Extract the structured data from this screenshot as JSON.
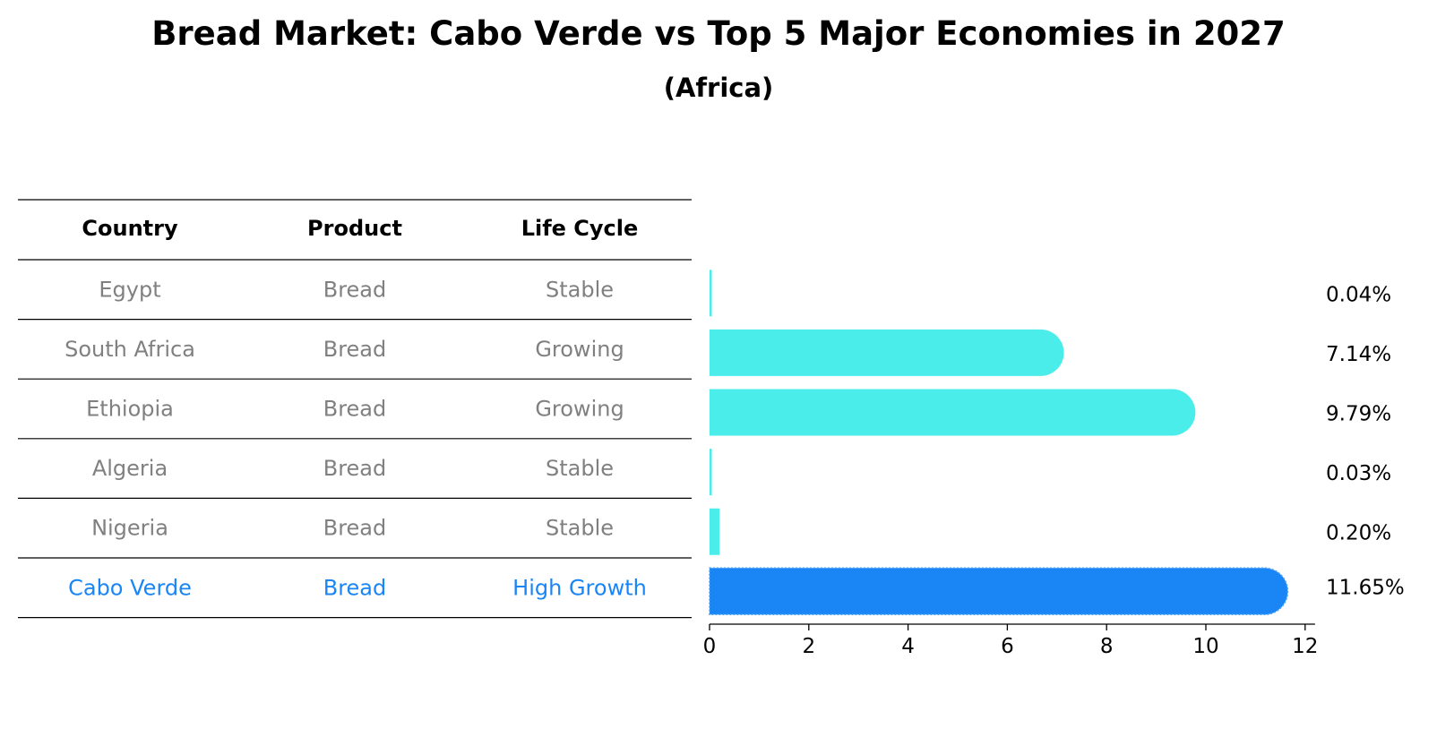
{
  "chart_data": {
    "type": "bar",
    "orientation": "horizontal",
    "title": "Bread Market: Cabo Verde vs Top 5 Major Economies in 2027",
    "subtitle": "(Africa)",
    "table": {
      "headers": [
        "Country",
        "Product",
        "Life Cycle"
      ],
      "rows": [
        {
          "country": "Egypt",
          "product": "Bread",
          "life_cycle": "Stable",
          "highlight": false
        },
        {
          "country": "South Africa",
          "product": "Bread",
          "life_cycle": "Growing",
          "highlight": false
        },
        {
          "country": "Ethiopia",
          "product": "Bread",
          "life_cycle": "Growing",
          "highlight": false
        },
        {
          "country": "Algeria",
          "product": "Bread",
          "life_cycle": "Stable",
          "highlight": false
        },
        {
          "country": "Nigeria",
          "product": "Bread",
          "life_cycle": "Stable",
          "highlight": false
        },
        {
          "country": "Cabo Verde",
          "product": "Bread",
          "life_cycle": "High Growth",
          "highlight": true
        }
      ]
    },
    "categories": [
      "Egypt",
      "South Africa",
      "Ethiopia",
      "Algeria",
      "Nigeria",
      "Cabo Verde"
    ],
    "values": [
      0.04,
      7.14,
      9.79,
      0.03,
      0.2,
      11.65
    ],
    "value_labels": [
      "0.04%",
      "7.14%",
      "9.79%",
      "0.03%",
      "0.20%",
      "11.65%"
    ],
    "xlim": [
      0,
      12.2
    ],
    "xticks": [
      0,
      2,
      4,
      6,
      8,
      10,
      12
    ],
    "grid": false,
    "legend": false,
    "colors": {
      "bar": "#4AEDE9",
      "highlight_bar": "#1A85F5",
      "text_muted": "#808080",
      "text_highlight": "#1A85F5",
      "rule": "#000000"
    }
  }
}
